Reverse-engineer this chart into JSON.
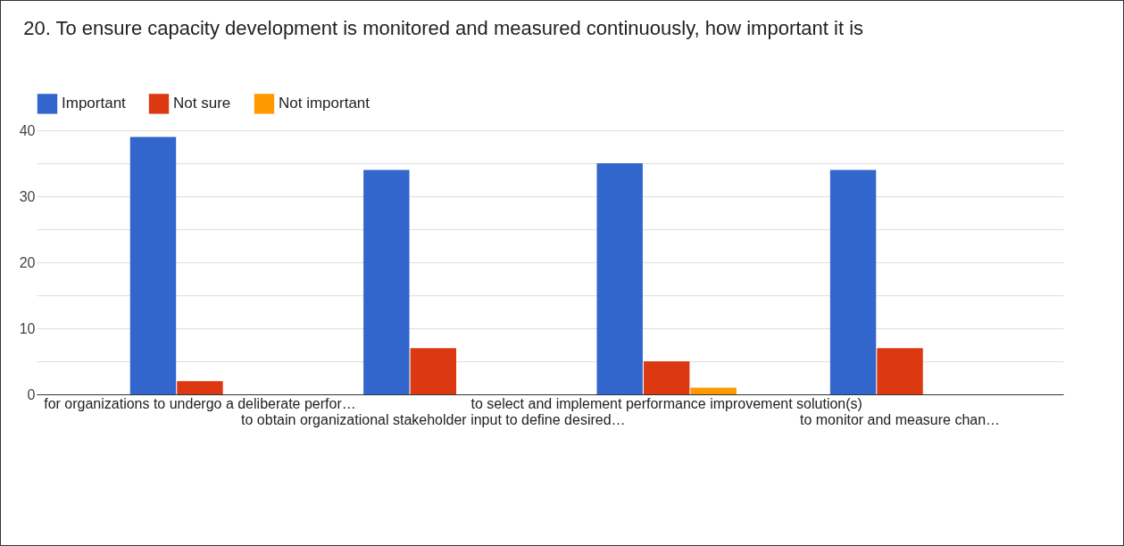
{
  "chart_data": {
    "type": "bar",
    "title": "20. To ensure capacity development is monitored and measured continuously, how important it is",
    "categories": [
      "for organizations to undergo a deliberate perfor…",
      "to obtain organizational stakeholder input to define desired…",
      "to select and implement performance improvement solution(s)",
      "to monitor and measure chan…"
    ],
    "series": [
      {
        "name": "Important",
        "color": "#3366cc",
        "values": [
          39,
          34,
          35,
          34
        ]
      },
      {
        "name": "Not sure",
        "color": "#dc3912",
        "values": [
          2,
          7,
          5,
          7
        ]
      },
      {
        "name": "Not important",
        "color": "#ff9900",
        "values": [
          0,
          0,
          1,
          0
        ]
      }
    ],
    "ylim": [
      0,
      40
    ],
    "yticks": [
      0,
      {
        "value": 5,
        "label": null
      },
      10,
      {
        "value": 15,
        "label": null
      },
      20,
      {
        "value": 25,
        "label": null
      },
      30,
      {
        "value": 35,
        "label": null
      },
      40
    ],
    "grid": true,
    "legend": "top left"
  }
}
